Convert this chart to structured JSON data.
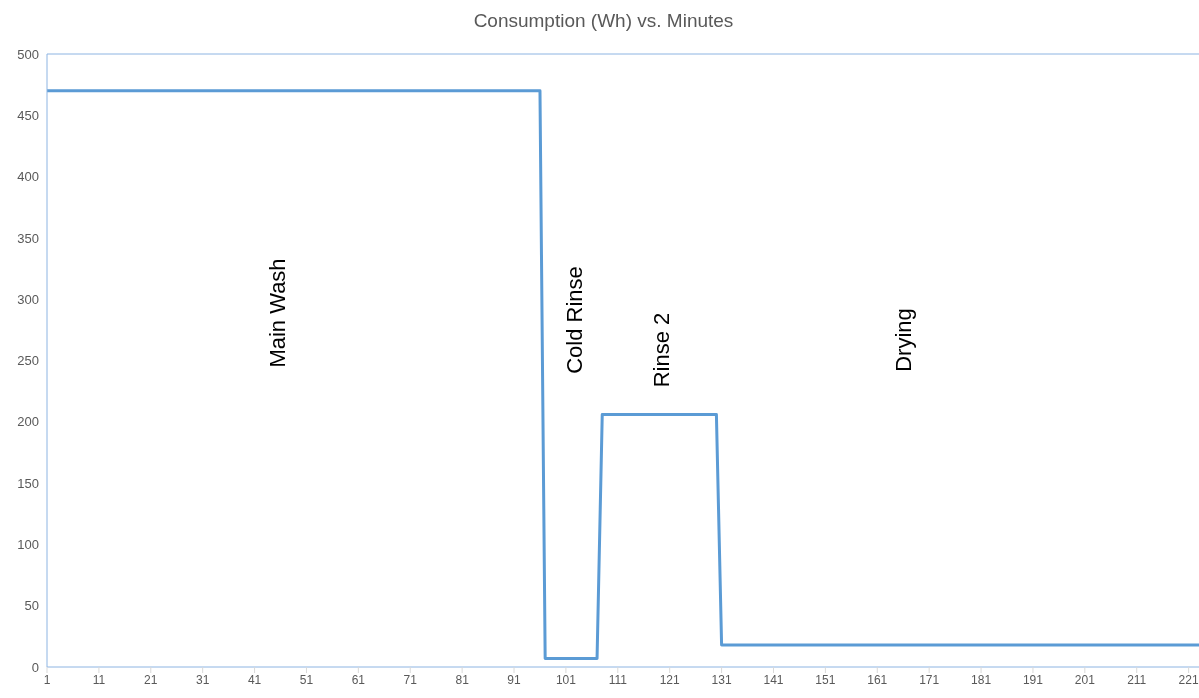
{
  "chart_data": {
    "type": "line",
    "title": "Consumption (Wh) vs. Minutes",
    "series": [
      {
        "color": "#5b9bd5",
        "x": [
          1,
          96,
          97,
          107,
          108,
          130,
          131,
          223
        ],
        "values": [
          470,
          470,
          7,
          7,
          206,
          206,
          18,
          18
        ]
      }
    ],
    "xlim": [
      1,
      223
    ],
    "xticks": [
      1,
      11,
      21,
      31,
      41,
      51,
      61,
      71,
      81,
      91,
      101,
      111,
      121,
      131,
      141,
      151,
      161,
      171,
      181,
      191,
      201,
      211,
      221
    ],
    "ylim": [
      0,
      500
    ],
    "yticks": [
      0,
      50,
      100,
      150,
      200,
      250,
      300,
      350,
      400,
      450,
      500
    ],
    "grid": false,
    "marker": "none",
    "line_style": "solid",
    "annotations": [
      "Main Wash",
      "Cold Rinse",
      "Rinse 2",
      "Drying"
    ]
  }
}
